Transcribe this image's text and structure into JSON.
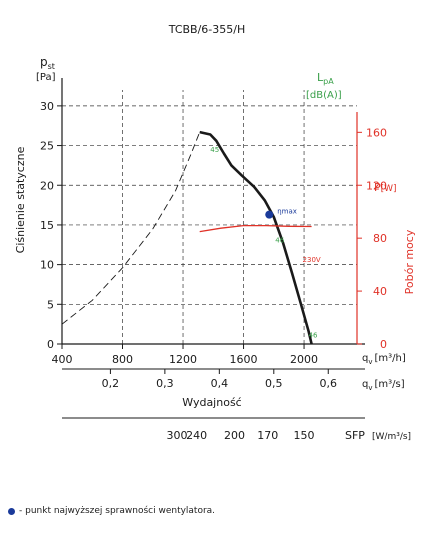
{
  "chart_data": {
    "type": "line",
    "title": "TCBB/6-355/H",
    "y_left": {
      "symbol": "p",
      "subscript": "st",
      "unit": "[Pa]",
      "label": "Ciśnienie statyczne",
      "ticks": [
        "0",
        "5",
        "10",
        "15",
        "20",
        "25",
        "30"
      ],
      "ylim": [
        0,
        32
      ]
    },
    "y_right": {
      "symbol": "P",
      "unit": "[W]",
      "label": "Pobór mocy",
      "ticks": [
        "0",
        "40",
        "80",
        "120",
        "160"
      ],
      "ylim": [
        0,
        192
      ]
    },
    "x_m3h": {
      "label": "q",
      "subscript": "v",
      "unit": "[m³/h]",
      "ticks": [
        "400",
        "800",
        "1200",
        "1600",
        "2000"
      ],
      "xlim": [
        400,
        2350
      ]
    },
    "x_m3s": {
      "label": "q",
      "subscript": "v",
      "unit": "[m³/s]",
      "ticks": [
        "0,2",
        "0,3",
        "0,4",
        "0,5",
        "0,6"
      ],
      "values": [
        0.2,
        0.3,
        0.4,
        0.5,
        0.6
      ]
    },
    "x_sfp": {
      "label": "SFP",
      "unit": "[W/m³/s]",
      "ticks": [
        "300",
        "240",
        "200",
        "170",
        "150"
      ],
      "positions_m3h": [
        1160,
        1290,
        1540,
        1760,
        2000
      ]
    },
    "x_title": "Wydajność",
    "sound": {
      "symbol": "L",
      "subscript": "pA",
      "unit": "[dB(A)]",
      "labels": [
        {
          "text": "45",
          "x": 1380,
          "y": 24.2
        },
        {
          "text": "46",
          "x": 1810,
          "y": 12.8
        },
        {
          "text": "46",
          "x": 2030,
          "y": 0.8
        }
      ]
    },
    "series": [
      {
        "name": "pressure",
        "style": "solid",
        "points": [
          [
            1310,
            26.7
          ],
          [
            1380,
            26.4
          ],
          [
            1420,
            25.6
          ],
          [
            1470,
            24.0
          ],
          [
            1520,
            22.5
          ],
          [
            1590,
            21.2
          ],
          [
            1670,
            19.8
          ],
          [
            1740,
            18.1
          ],
          [
            1800,
            16.0
          ],
          [
            1860,
            12.8
          ],
          [
            1920,
            9.0
          ],
          [
            1980,
            5.0
          ],
          [
            2030,
            1.6
          ],
          [
            2050,
            0
          ]
        ]
      },
      {
        "name": "pressure-extrapolated",
        "style": "dashed",
        "points": [
          [
            400,
            2.5
          ],
          [
            600,
            5.5
          ],
          [
            800,
            9.6
          ],
          [
            1000,
            14.5
          ],
          [
            1150,
            19.3
          ],
          [
            1250,
            23.8
          ],
          [
            1310,
            26.7
          ]
        ]
      },
      {
        "name": "power",
        "style": "solid",
        "points": [
          [
            1310,
            85
          ],
          [
            1450,
            87.5
          ],
          [
            1600,
            89.5
          ],
          [
            1750,
            89.5
          ],
          [
            1900,
            89
          ],
          [
            2050,
            88.8
          ]
        ]
      }
    ],
    "annotations": [
      {
        "text": "ηmax",
        "x": 1770,
        "y": 16.3,
        "marker": true
      },
      {
        "text": "230V",
        "x": 1990,
        "y": 10.3
      }
    ],
    "colors": {
      "pressure": "#1a1a1a",
      "power": "#e03127",
      "sound": "#3aa04a",
      "marker": "#1a3a9a",
      "grid": "#333333"
    }
  },
  "footnote": "- punkt najwyższej sprawności wentylatora."
}
